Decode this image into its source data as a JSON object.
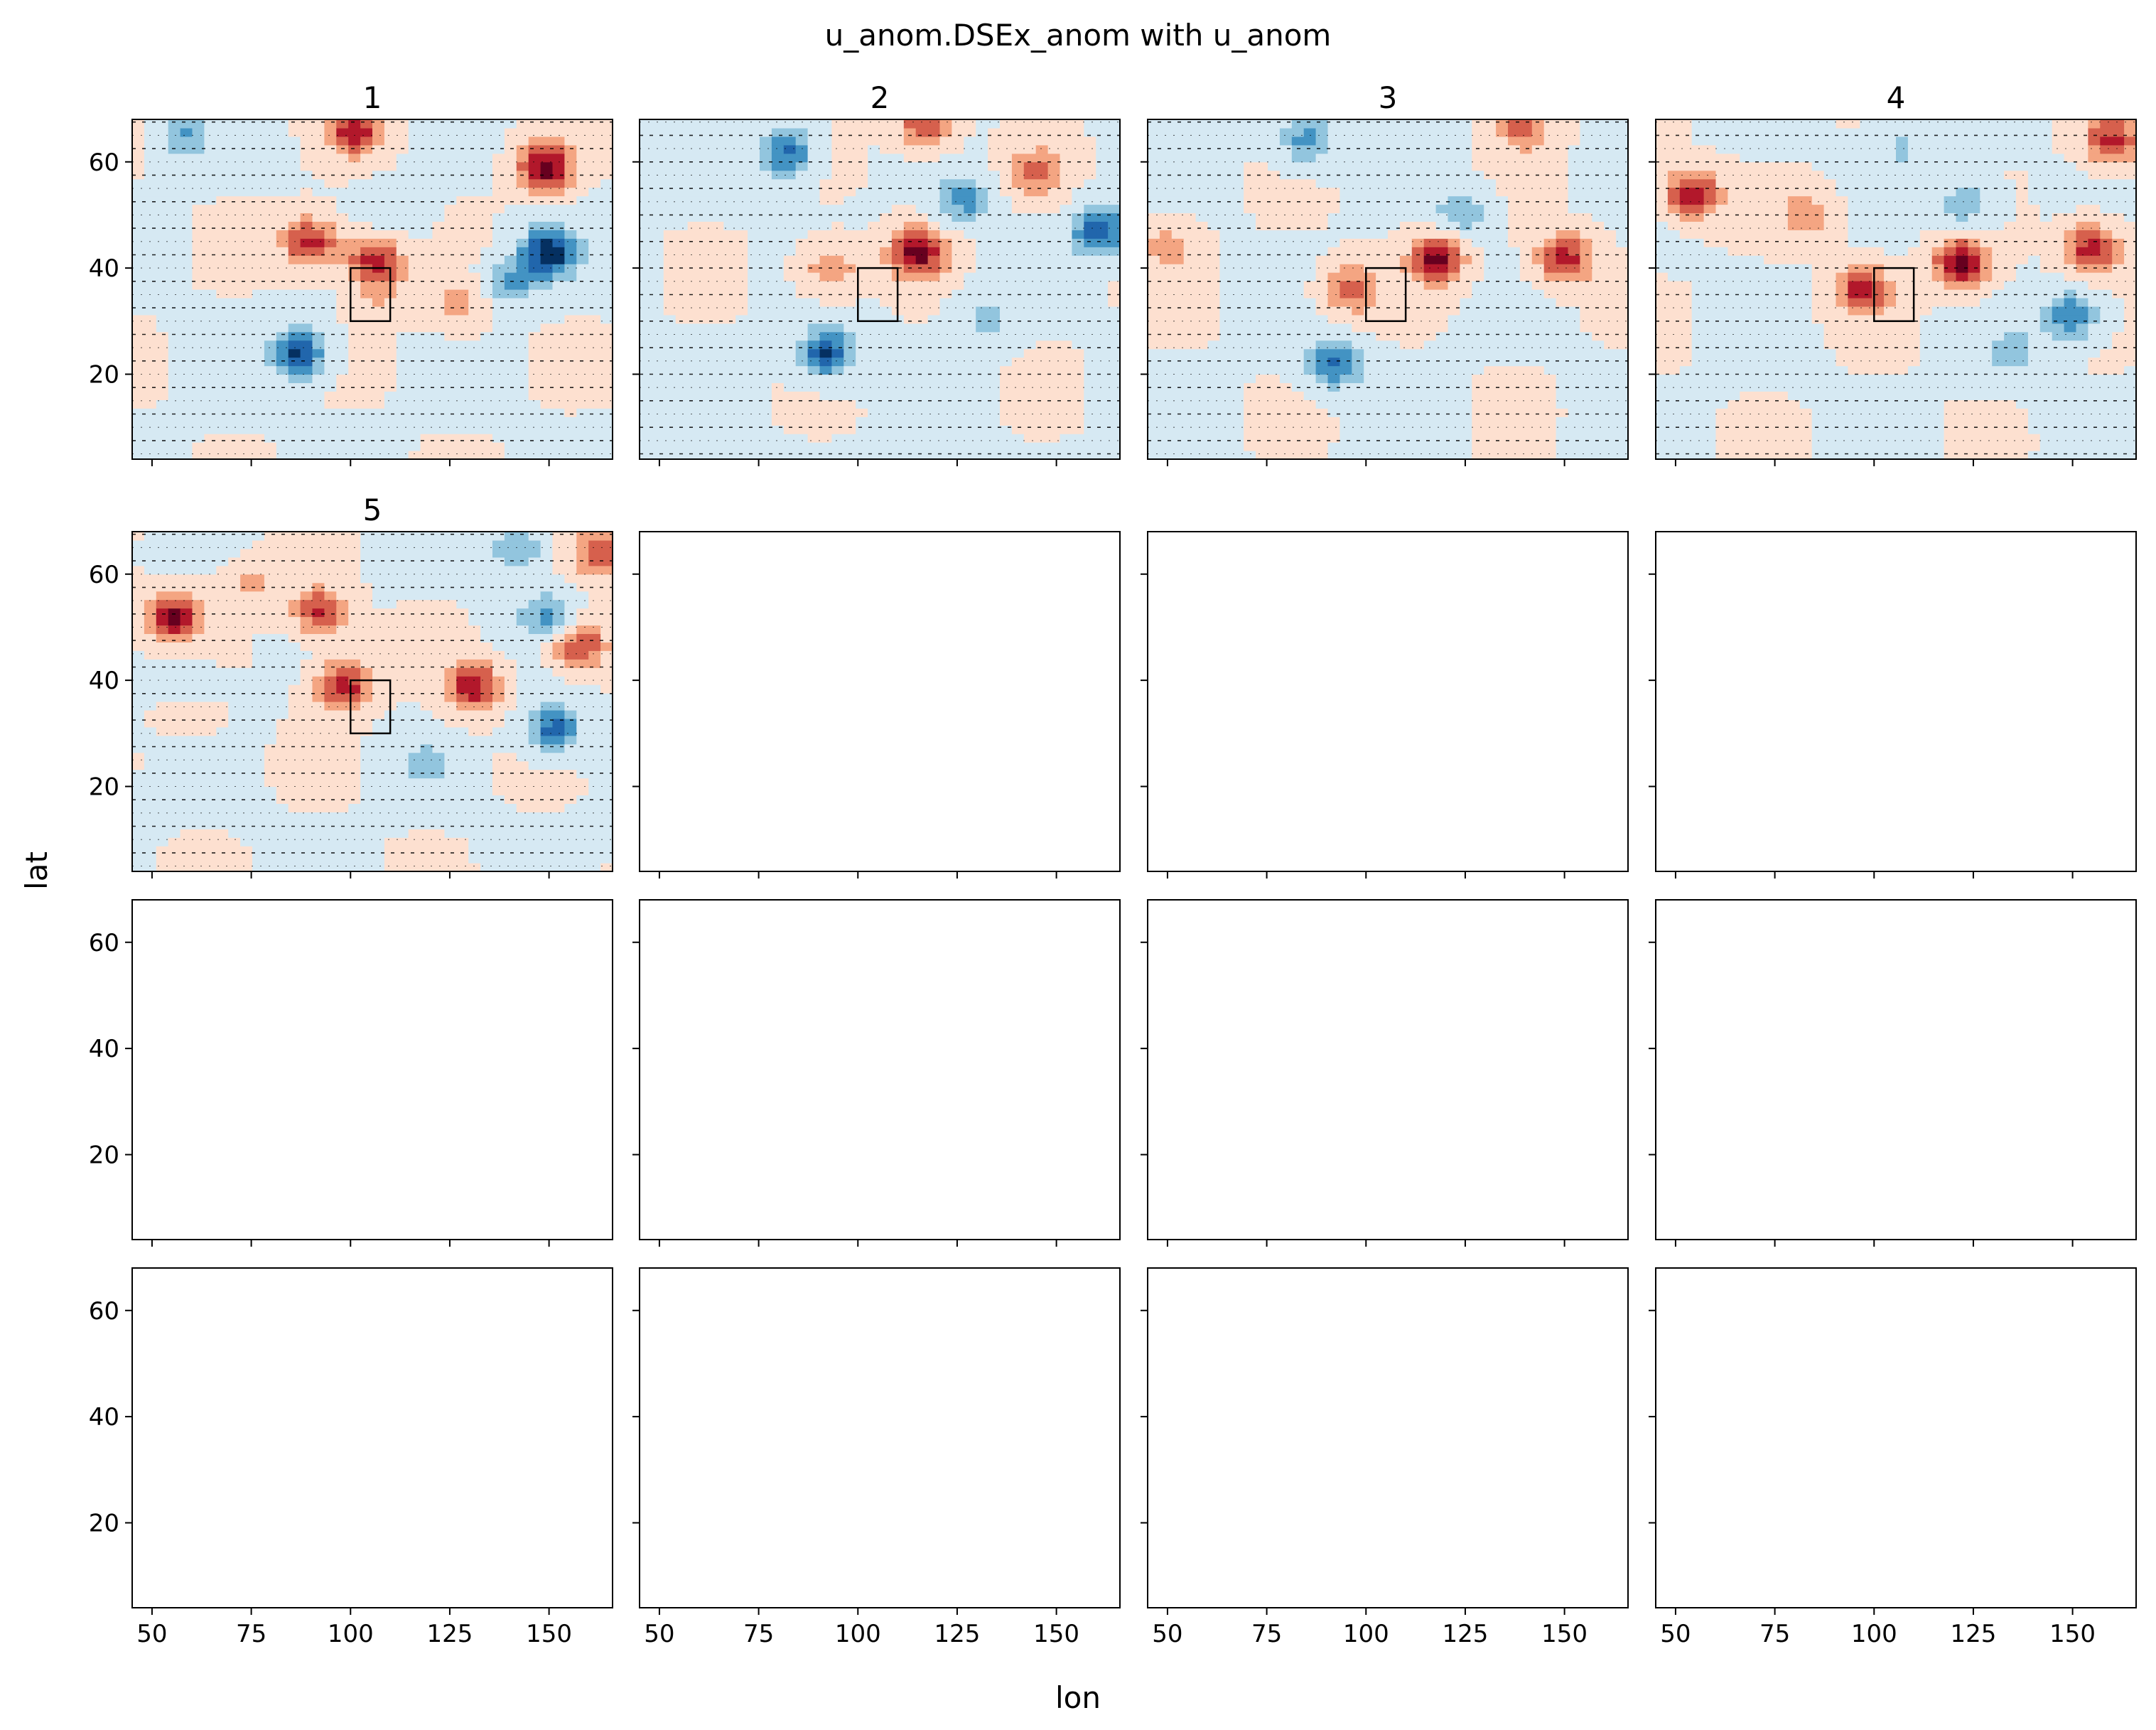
{
  "figure": {
    "title": "u_anom.DSEx_anom with u_anom",
    "xlabel": "lon",
    "ylabel": "lat"
  },
  "chart_data": {
    "type": "heatmap",
    "title": "u_anom.DSEx_anom with u_anom",
    "xlabel": "lon",
    "ylabel": "lat",
    "grid": false,
    "layout": {
      "rows": 4,
      "cols": 4
    },
    "xlim": [
      45,
      166
    ],
    "ylim": [
      4,
      68
    ],
    "xticks": [
      50,
      75,
      100,
      125,
      150
    ],
    "yticks": [
      20,
      40,
      60
    ],
    "colormap": "RdBu_r",
    "box": {
      "lon": [
        100,
        110
      ],
      "lat": [
        30,
        40
      ]
    },
    "panels": [
      {
        "title": "1",
        "features": [
          {
            "lon": 58,
            "lat": 65,
            "value": -0.5
          },
          {
            "lon": 101,
            "lat": 66,
            "value": 0.75
          },
          {
            "lon": 149,
            "lat": 59,
            "value": 0.9
          },
          {
            "lon": 90,
            "lat": 45,
            "value": 0.8
          },
          {
            "lon": 106,
            "lat": 42,
            "value": 0.8
          },
          {
            "lon": 87,
            "lat": 24,
            "value": -0.9
          },
          {
            "lon": 150,
            "lat": 43,
            "value": -0.95
          },
          {
            "lon": 140,
            "lat": 37,
            "value": -0.5
          },
          {
            "lon": 112,
            "lat": 51,
            "value": -0.3
          },
          {
            "lon": 128,
            "lat": 33,
            "value": 0.4
          },
          {
            "lon": 108,
            "lat": 35,
            "value": 0.3
          }
        ]
      },
      {
        "title": "2",
        "features": [
          {
            "lon": 82,
            "lat": 62,
            "value": -0.8
          },
          {
            "lon": 117,
            "lat": 67,
            "value": 0.75
          },
          {
            "lon": 145,
            "lat": 58,
            "value": 0.5
          },
          {
            "lon": 115,
            "lat": 43,
            "value": 0.9
          },
          {
            "lon": 92,
            "lat": 24,
            "value": -0.9
          },
          {
            "lon": 127,
            "lat": 53,
            "value": -0.6
          },
          {
            "lon": 161,
            "lat": 47,
            "value": -0.85
          },
          {
            "lon": 93,
            "lat": 40,
            "value": 0.55
          },
          {
            "lon": 132,
            "lat": 31,
            "value": -0.4
          }
        ]
      },
      {
        "title": "3",
        "features": [
          {
            "lon": 85,
            "lat": 64,
            "value": -0.6
          },
          {
            "lon": 140,
            "lat": 67,
            "value": 0.6
          },
          {
            "lon": 118,
            "lat": 42,
            "value": 0.9
          },
          {
            "lon": 96,
            "lat": 36,
            "value": 0.6
          },
          {
            "lon": 92,
            "lat": 22,
            "value": -0.75
          },
          {
            "lon": 150,
            "lat": 42,
            "value": 0.8
          },
          {
            "lon": 124,
            "lat": 50,
            "value": -0.5
          },
          {
            "lon": 50,
            "lat": 44,
            "value": 0.4
          }
        ]
      },
      {
        "title": "4",
        "features": [
          {
            "lon": 54,
            "lat": 54,
            "value": 0.85
          },
          {
            "lon": 160,
            "lat": 64,
            "value": 0.75
          },
          {
            "lon": 122,
            "lat": 41,
            "value": 0.95
          },
          {
            "lon": 97,
            "lat": 36,
            "value": 0.75
          },
          {
            "lon": 155,
            "lat": 44,
            "value": 0.85
          },
          {
            "lon": 150,
            "lat": 31,
            "value": -0.75
          },
          {
            "lon": 123,
            "lat": 52,
            "value": -0.55
          },
          {
            "lon": 83,
            "lat": 50,
            "value": 0.45
          },
          {
            "lon": 107,
            "lat": 63,
            "value": -0.35
          },
          {
            "lon": 135,
            "lat": 24,
            "value": -0.4
          }
        ]
      },
      {
        "title": "5",
        "features": [
          {
            "lon": 55,
            "lat": 52,
            "value": 0.85
          },
          {
            "lon": 92,
            "lat": 53,
            "value": 0.75
          },
          {
            "lon": 98,
            "lat": 39,
            "value": 0.85
          },
          {
            "lon": 131,
            "lat": 39,
            "value": 0.85
          },
          {
            "lon": 157,
            "lat": 47,
            "value": 0.8
          },
          {
            "lon": 163,
            "lat": 64,
            "value": 0.65
          },
          {
            "lon": 151,
            "lat": 31,
            "value": -0.8
          },
          {
            "lon": 142,
            "lat": 65,
            "value": -0.55
          },
          {
            "lon": 150,
            "lat": 52,
            "value": -0.6
          },
          {
            "lon": 60,
            "lat": 38,
            "value": -0.45
          },
          {
            "lon": 118,
            "lat": 24,
            "value": -0.35
          },
          {
            "lon": 60,
            "lat": 35,
            "value": 0.4
          },
          {
            "lon": 75,
            "lat": 58,
            "value": 0.35
          }
        ]
      },
      {
        "title": "",
        "features": []
      },
      {
        "title": "",
        "features": []
      },
      {
        "title": "",
        "features": []
      },
      {
        "title": "",
        "features": []
      },
      {
        "title": "",
        "features": []
      },
      {
        "title": "",
        "features": []
      },
      {
        "title": "",
        "features": []
      },
      {
        "title": "",
        "features": []
      },
      {
        "title": "",
        "features": []
      },
      {
        "title": "",
        "features": []
      },
      {
        "title": "",
        "features": []
      }
    ]
  }
}
